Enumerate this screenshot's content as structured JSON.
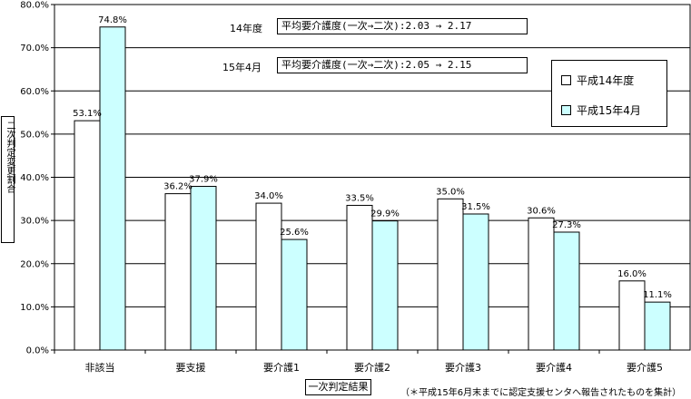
{
  "chart_data": {
    "type": "bar",
    "categories": [
      "非該当",
      "要支援",
      "要介護1",
      "要介護2",
      "要介護3",
      "要介護4",
      "要介護5"
    ],
    "series": [
      {
        "name": "平成14年度",
        "values": [
          53.1,
          36.2,
          34.0,
          33.5,
          35.0,
          30.6,
          16.0
        ],
        "labels": [
          "53.1%",
          "36.2%",
          "34.0%",
          "33.5%",
          "35.0%",
          "30.6%",
          "16.0%"
        ],
        "color": "#ffffff"
      },
      {
        "name": "平成15年4月",
        "values": [
          74.8,
          37.9,
          25.6,
          29.9,
          31.5,
          27.3,
          11.1
        ],
        "labels": [
          "74.8%",
          "37.9%",
          "25.6%",
          "29.9%",
          "31.5%",
          "27.3%",
          "11.1%"
        ],
        "color": "#ccffff"
      }
    ],
    "ylim": [
      0,
      80
    ],
    "yticks": [
      "0.0%",
      "10.0%",
      "20.0%",
      "30.0%",
      "40.0%",
      "50.0%",
      "60.0%",
      "70.0%",
      "80.0%"
    ],
    "xlabel": "一次判定結果",
    "ylabel": "二次判定変更割合",
    "grid": true,
    "legend_position": "top-right",
    "annotations": [
      {
        "label": "14年度",
        "text": "平均要介護度(一次→二次):2.03 → 2.17"
      },
      {
        "label": "15年4月",
        "text": "平均要介護度(一次→二次):2.05 → 2.15"
      }
    ],
    "note": "（＊平成15年6月末までに認定支援センタへ報告されたものを集計）"
  }
}
